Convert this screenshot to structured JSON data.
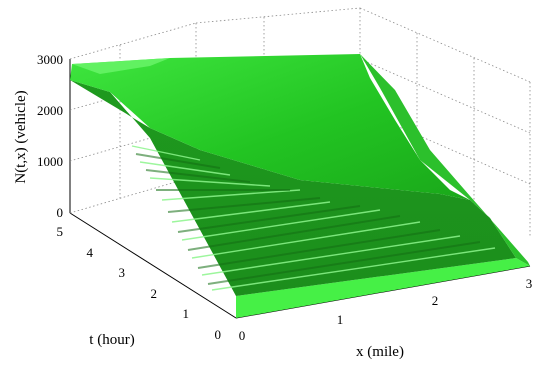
{
  "chart_data": {
    "type": "surface",
    "xlabel": "x (mile)",
    "ylabel": "t (hour)",
    "zlabel": "N(t,x) (vehicle)",
    "x_ticks": [
      "0",
      "1",
      "2",
      "3"
    ],
    "y_ticks": [
      "0",
      "1",
      "2",
      "3",
      "4",
      "5"
    ],
    "z_ticks": [
      "0",
      "1000",
      "2000",
      "3000"
    ],
    "xlim": [
      0,
      3
    ],
    "ylim": [
      0,
      5
    ],
    "zlim": [
      0,
      3000
    ],
    "grid": true,
    "surface_color": "#2ecc2e",
    "surface_samples": [
      {
        "x": 0,
        "t": 0,
        "N": 0
      },
      {
        "x": 3,
        "t": 0,
        "N": 0
      },
      {
        "x": 0,
        "t": 5,
        "N": 2700
      },
      {
        "x": 1,
        "t": 5,
        "N": 2900
      },
      {
        "x": 3,
        "t": 5,
        "N": 2900
      },
      {
        "x": 3,
        "t": 2,
        "N": 280
      },
      {
        "x": 3,
        "t": 3,
        "N": 750
      },
      {
        "x": 0,
        "t": 2,
        "N": 1150
      },
      {
        "x": 0,
        "t": 1,
        "N": 600
      }
    ]
  }
}
